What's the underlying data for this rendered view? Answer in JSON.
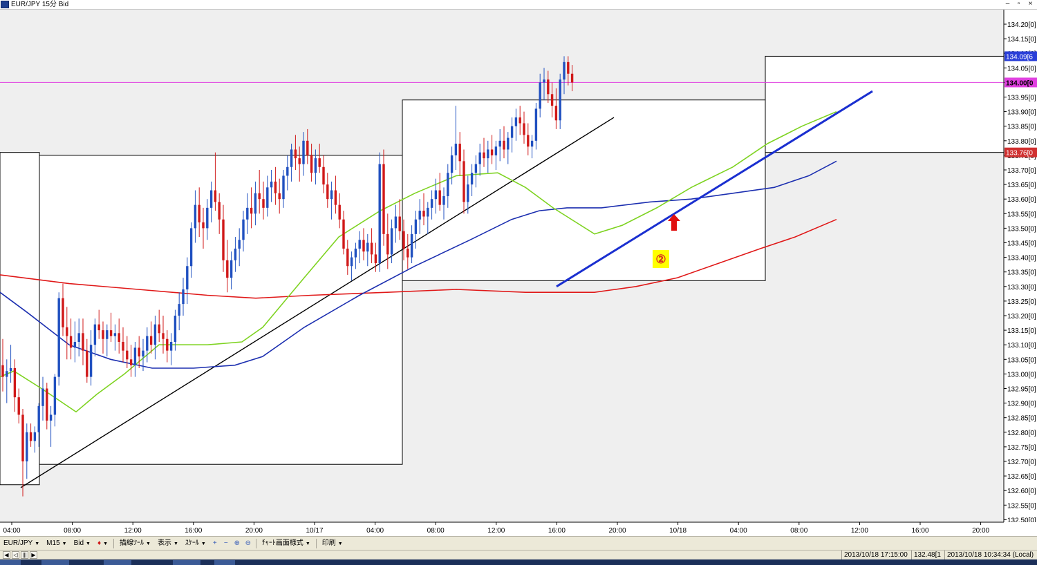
{
  "window": {
    "title": "EUR/JPY 15分 Bid"
  },
  "chart_data": {
    "type": "candlestick",
    "symbol": "EUR/JPY",
    "timeframe": "M15",
    "price_type": "Bid",
    "y_ticks": [
      "134.20[0]",
      "134.15[0]",
      "134.10[0]",
      "134.05[0]",
      "134.00[0]",
      "133.95[0]",
      "133.90[0]",
      "133.85[0]",
      "133.80[0]",
      "133.75[0]",
      "133.70[0]",
      "133.65[0]",
      "133.60[0]",
      "133.55[0]",
      "133.50[0]",
      "133.45[0]",
      "133.40[0]",
      "133.35[0]",
      "133.30[0]",
      "133.25[0]",
      "133.20[0]",
      "133.15[0]",
      "133.10[0]",
      "133.05[0]",
      "133.00[0]",
      "132.95[0]",
      "132.90[0]",
      "132.85[0]",
      "132.80[0]",
      "132.75[0]",
      "132.70[0]",
      "132.65[0]",
      "132.60[0]",
      "132.55[0]",
      "132.50[0]"
    ],
    "ylim": [
      132.48,
      134.25
    ],
    "x_ticks": [
      "04:00",
      "08:00",
      "12:00",
      "16:00",
      "20:00",
      "10/17",
      "04:00",
      "08:00",
      "12:00",
      "16:00",
      "20:00",
      "10/18",
      "04:00",
      "08:00",
      "12:00",
      "16:00",
      "20:00"
    ],
    "current_price_label": "134.09[6",
    "horizontal_line": {
      "value": 134.0,
      "label": "134.00[0",
      "color": "#e040e0"
    },
    "low_marker": {
      "value": 133.76,
      "label": "133.76[0",
      "color": "#d03030"
    },
    "annotation": {
      "text": "②",
      "bg": "#ffff00",
      "color": "#d83020"
    },
    "colors": {
      "up": "#2050c0",
      "down": "#d01818",
      "ma_fast": "#7ed321",
      "ma_mid": "#1c2fb0",
      "ma_slow": "#e01818",
      "trend_black": "#000000",
      "trend_blue": "#1a2fd0"
    },
    "boxes": [
      {
        "x0": 0,
        "x1": 57,
        "y_low": 132.62,
        "y_high": 133.76
      },
      {
        "x0": 57,
        "x1": 582,
        "y_low": 132.69,
        "y_high": 133.75
      },
      {
        "x0": 582,
        "x1": 1107,
        "y_low": 133.32,
        "y_high": 133.94
      },
      {
        "x0": 1107,
        "x1": 1452,
        "y_low": 133.76,
        "y_high": 134.09
      }
    ],
    "candles": [
      [
        133.03,
        133.12,
        132.94,
        132.99
      ],
      [
        132.99,
        133.05,
        132.9,
        133.01
      ],
      [
        133.01,
        133.1,
        132.97,
        133.02
      ],
      [
        133.02,
        133.05,
        132.87,
        132.92
      ],
      [
        132.92,
        132.95,
        132.83,
        132.86
      ],
      [
        132.86,
        132.88,
        132.58,
        132.7
      ],
      [
        132.7,
        132.83,
        132.64,
        132.8
      ],
      [
        132.8,
        132.83,
        132.75,
        132.77
      ],
      [
        132.77,
        132.82,
        132.73,
        132.8
      ],
      [
        132.8,
        132.9,
        132.75,
        132.89
      ],
      [
        132.89,
        132.99,
        132.84,
        132.95
      ],
      [
        132.95,
        132.97,
        132.81,
        132.84
      ],
      [
        132.84,
        132.89,
        132.75,
        132.86
      ],
      [
        132.86,
        133.0,
        132.82,
        132.99
      ],
      [
        132.99,
        133.28,
        132.96,
        133.26
      ],
      [
        133.26,
        133.31,
        133.13,
        133.16
      ],
      [
        133.16,
        133.23,
        133.05,
        133.13
      ],
      [
        133.13,
        133.19,
        133.05,
        133.09
      ],
      [
        133.09,
        133.18,
        133.04,
        133.11
      ],
      [
        133.11,
        133.19,
        133.06,
        133.14
      ],
      [
        133.14,
        133.19,
        133.03,
        133.08
      ],
      [
        133.08,
        133.12,
        132.97,
        132.99
      ],
      [
        132.99,
        133.15,
        132.96,
        133.1
      ],
      [
        133.1,
        133.19,
        133.06,
        133.17
      ],
      [
        133.17,
        133.22,
        133.12,
        133.15
      ],
      [
        133.15,
        133.18,
        133.07,
        133.12
      ],
      [
        133.12,
        133.17,
        133.06,
        133.15
      ],
      [
        133.15,
        133.21,
        133.11,
        133.13
      ],
      [
        133.13,
        133.17,
        133.08,
        133.14
      ],
      [
        133.14,
        133.19,
        133.07,
        133.11
      ],
      [
        133.11,
        133.16,
        133.04,
        133.08
      ],
      [
        133.08,
        133.13,
        133.02,
        133.05
      ],
      [
        133.05,
        133.1,
        132.99,
        133.03
      ],
      [
        133.03,
        133.11,
        132.99,
        133.09
      ],
      [
        133.09,
        133.13,
        133.02,
        133.06
      ],
      [
        133.06,
        133.12,
        133.01,
        133.08
      ],
      [
        133.08,
        133.16,
        133.04,
        133.13
      ],
      [
        133.13,
        133.18,
        133.07,
        133.1
      ],
      [
        133.1,
        133.2,
        133.05,
        133.17
      ],
      [
        133.17,
        133.22,
        133.11,
        133.14
      ],
      [
        133.14,
        133.2,
        133.07,
        133.12
      ],
      [
        133.12,
        133.15,
        133.04,
        133.08
      ],
      [
        133.08,
        133.14,
        133.03,
        133.11
      ],
      [
        133.11,
        133.22,
        133.08,
        133.2
      ],
      [
        133.2,
        133.28,
        133.15,
        133.24
      ],
      [
        133.24,
        133.33,
        133.2,
        133.29
      ],
      [
        133.29,
        133.4,
        133.24,
        133.37
      ],
      [
        133.37,
        133.52,
        133.33,
        133.5
      ],
      [
        133.5,
        133.63,
        133.45,
        133.58
      ],
      [
        133.58,
        133.64,
        133.47,
        133.52
      ],
      [
        133.52,
        133.57,
        133.43,
        133.5
      ],
      [
        133.5,
        133.6,
        133.46,
        133.57
      ],
      [
        133.57,
        133.66,
        133.52,
        133.63
      ],
      [
        133.63,
        133.76,
        133.56,
        133.59
      ],
      [
        133.59,
        133.62,
        133.48,
        133.53
      ],
      [
        133.53,
        133.58,
        133.35,
        133.39
      ],
      [
        133.39,
        133.46,
        133.28,
        133.33
      ],
      [
        133.33,
        133.42,
        133.29,
        133.39
      ],
      [
        133.39,
        133.47,
        133.35,
        133.43
      ],
      [
        133.43,
        133.5,
        133.37,
        133.46
      ],
      [
        133.46,
        133.56,
        133.42,
        133.53
      ],
      [
        133.53,
        133.62,
        133.48,
        133.57
      ],
      [
        133.57,
        133.64,
        133.5,
        133.55
      ],
      [
        133.55,
        133.66,
        133.51,
        133.62
      ],
      [
        133.62,
        133.7,
        133.55,
        133.6
      ],
      [
        133.6,
        133.66,
        133.53,
        133.57
      ],
      [
        133.57,
        133.68,
        133.54,
        133.64
      ],
      [
        133.64,
        133.7,
        133.59,
        133.66
      ],
      [
        133.66,
        133.71,
        133.58,
        133.62
      ],
      [
        133.62,
        133.67,
        133.55,
        133.6
      ],
      [
        133.6,
        133.7,
        133.57,
        133.68
      ],
      [
        133.68,
        133.75,
        133.63,
        133.71
      ],
      [
        133.71,
        133.79,
        133.66,
        133.77
      ],
      [
        133.77,
        133.82,
        133.7,
        133.74
      ],
      [
        133.74,
        133.78,
        133.66,
        133.72
      ],
      [
        133.72,
        133.83,
        133.68,
        133.8
      ],
      [
        133.8,
        133.84,
        133.72,
        133.75
      ],
      [
        133.75,
        133.79,
        133.66,
        133.69
      ],
      [
        133.69,
        133.77,
        133.65,
        133.74
      ],
      [
        133.74,
        133.79,
        133.69,
        133.71
      ],
      [
        133.71,
        133.75,
        133.62,
        133.65
      ],
      [
        133.65,
        133.69,
        133.57,
        133.6
      ],
      [
        133.6,
        133.66,
        133.53,
        133.63
      ],
      [
        133.63,
        133.68,
        133.55,
        133.58
      ],
      [
        133.58,
        133.62,
        133.5,
        133.53
      ],
      [
        133.53,
        133.56,
        133.41,
        133.43
      ],
      [
        133.43,
        133.46,
        133.34,
        133.37
      ],
      [
        133.37,
        133.42,
        133.32,
        133.4
      ],
      [
        133.4,
        133.45,
        133.36,
        133.43
      ],
      [
        133.43,
        133.49,
        133.38,
        133.46
      ],
      [
        133.46,
        133.5,
        133.39,
        133.42
      ],
      [
        133.42,
        133.48,
        133.37,
        133.45
      ],
      [
        133.45,
        133.5,
        133.38,
        133.41
      ],
      [
        133.41,
        133.45,
        133.35,
        133.38
      ],
      [
        133.38,
        133.76,
        133.35,
        133.72
      ],
      [
        133.72,
        133.77,
        133.44,
        133.48
      ],
      [
        133.48,
        133.55,
        133.36,
        133.41
      ],
      [
        133.41,
        133.53,
        133.38,
        133.5
      ],
      [
        133.5,
        133.58,
        133.45,
        133.54
      ],
      [
        133.54,
        133.6,
        133.46,
        133.49
      ],
      [
        133.49,
        133.53,
        133.39,
        133.43
      ],
      [
        133.43,
        133.48,
        133.36,
        133.4
      ],
      [
        133.4,
        133.51,
        133.38,
        133.48
      ],
      [
        133.48,
        133.56,
        133.43,
        133.53
      ],
      [
        133.53,
        133.6,
        133.48,
        133.56
      ],
      [
        133.56,
        133.62,
        133.51,
        133.54
      ],
      [
        133.54,
        133.59,
        133.48,
        133.57
      ],
      [
        133.57,
        133.63,
        133.53,
        133.6
      ],
      [
        133.6,
        133.67,
        133.55,
        133.63
      ],
      [
        133.63,
        133.69,
        133.56,
        133.58
      ],
      [
        133.58,
        133.64,
        133.53,
        133.61
      ],
      [
        133.61,
        133.72,
        133.57,
        133.69
      ],
      [
        133.69,
        133.78,
        133.65,
        133.75
      ],
      [
        133.75,
        133.92,
        133.7,
        133.79
      ],
      [
        133.79,
        133.83,
        133.68,
        133.73
      ],
      [
        133.73,
        133.77,
        133.55,
        133.59
      ],
      [
        133.59,
        133.68,
        133.55,
        133.65
      ],
      [
        133.65,
        133.72,
        133.61,
        133.69
      ],
      [
        133.69,
        133.75,
        133.64,
        133.72
      ],
      [
        133.72,
        133.79,
        133.68,
        133.76
      ],
      [
        133.76,
        133.81,
        133.71,
        133.74
      ],
      [
        133.74,
        133.8,
        133.69,
        133.77
      ],
      [
        133.77,
        133.82,
        133.72,
        133.75
      ],
      [
        133.75,
        133.8,
        133.7,
        133.78
      ],
      [
        133.78,
        133.84,
        133.73,
        133.8
      ],
      [
        133.8,
        133.85,
        133.74,
        133.77
      ],
      [
        133.77,
        133.83,
        133.72,
        133.81
      ],
      [
        133.81,
        133.88,
        133.76,
        133.85
      ],
      [
        133.85,
        133.91,
        133.8,
        133.88
      ],
      [
        133.88,
        133.92,
        133.82,
        133.86
      ],
      [
        133.86,
        133.9,
        133.79,
        133.82
      ],
      [
        133.82,
        133.86,
        133.75,
        133.78
      ],
      [
        133.78,
        133.82,
        133.74,
        133.8
      ],
      [
        133.8,
        133.93,
        133.77,
        133.91
      ],
      [
        133.91,
        134.03,
        133.88,
        134.0
      ],
      [
        134.0,
        134.05,
        133.94,
        134.01
      ],
      [
        134.01,
        134.04,
        133.93,
        133.96
      ],
      [
        133.96,
        134.0,
        133.88,
        133.92
      ],
      [
        133.92,
        133.98,
        133.84,
        133.87
      ],
      [
        133.87,
        134.03,
        133.84,
        134.01
      ],
      [
        134.01,
        134.09,
        133.96,
        134.07
      ],
      [
        134.07,
        134.09,
        133.99,
        134.03
      ],
      [
        134.03,
        134.06,
        133.97,
        134.0
      ]
    ],
    "ma_fast": [
      [
        0,
        132.99
      ],
      [
        20,
        133.01
      ],
      [
        60,
        132.95
      ],
      [
        110,
        132.87
      ],
      [
        140,
        132.93
      ],
      [
        180,
        133.0
      ],
      [
        230,
        133.1
      ],
      [
        300,
        133.1
      ],
      [
        350,
        133.11
      ],
      [
        380,
        133.16
      ],
      [
        440,
        133.33
      ],
      [
        490,
        133.47
      ],
      [
        550,
        133.56
      ],
      [
        600,
        133.62
      ],
      [
        660,
        133.68
      ],
      [
        720,
        133.69
      ],
      [
        760,
        133.64
      ],
      [
        800,
        133.57
      ],
      [
        860,
        133.48
      ],
      [
        900,
        133.51
      ],
      [
        950,
        133.57
      ],
      [
        1000,
        133.64
      ],
      [
        1060,
        133.71
      ],
      [
        1110,
        133.79
      ],
      [
        1160,
        133.85
      ],
      [
        1210,
        133.9
      ]
    ],
    "ma_mid": [
      [
        0,
        133.28
      ],
      [
        40,
        133.21
      ],
      [
        100,
        133.1
      ],
      [
        160,
        133.05
      ],
      [
        220,
        133.02
      ],
      [
        280,
        133.02
      ],
      [
        340,
        133.03
      ],
      [
        380,
        133.06
      ],
      [
        440,
        133.16
      ],
      [
        520,
        133.27
      ],
      [
        600,
        133.37
      ],
      [
        680,
        133.46
      ],
      [
        740,
        133.53
      ],
      [
        780,
        133.56
      ],
      [
        820,
        133.57
      ],
      [
        870,
        133.57
      ],
      [
        940,
        133.59
      ],
      [
        1000,
        133.6
      ],
      [
        1060,
        133.62
      ],
      [
        1120,
        133.64
      ],
      [
        1170,
        133.68
      ],
      [
        1210,
        133.73
      ]
    ],
    "ma_slow": [
      [
        0,
        133.34
      ],
      [
        100,
        133.31
      ],
      [
        200,
        133.29
      ],
      [
        300,
        133.27
      ],
      [
        370,
        133.26
      ],
      [
        450,
        133.27
      ],
      [
        560,
        133.28
      ],
      [
        660,
        133.29
      ],
      [
        760,
        133.28
      ],
      [
        860,
        133.28
      ],
      [
        920,
        133.3
      ],
      [
        980,
        133.33
      ],
      [
        1040,
        133.38
      ],
      [
        1100,
        133.43
      ],
      [
        1150,
        133.47
      ],
      [
        1210,
        133.53
      ]
    ],
    "trend_black": [
      [
        30,
        132.61
      ],
      [
        888,
        133.88
      ]
    ],
    "trend_blue": [
      [
        805,
        133.3
      ],
      [
        1262,
        133.97
      ]
    ]
  },
  "toolbar": {
    "symbol": "EUR/JPY",
    "timeframe": "M15",
    "price": "Bid",
    "draw_tools": "描線ﾂｰﾙ",
    "view": "表示",
    "scale": "ｽｹｰﾙ",
    "chart_format": "ﾁｬｰﾄ画面様式",
    "print": "印刷"
  },
  "status": {
    "cursor_time": "2013/10/18 17:15:00",
    "cursor_value": "132.48[1",
    "local_time": "2013/10/18 10:34:34 (Local)"
  }
}
